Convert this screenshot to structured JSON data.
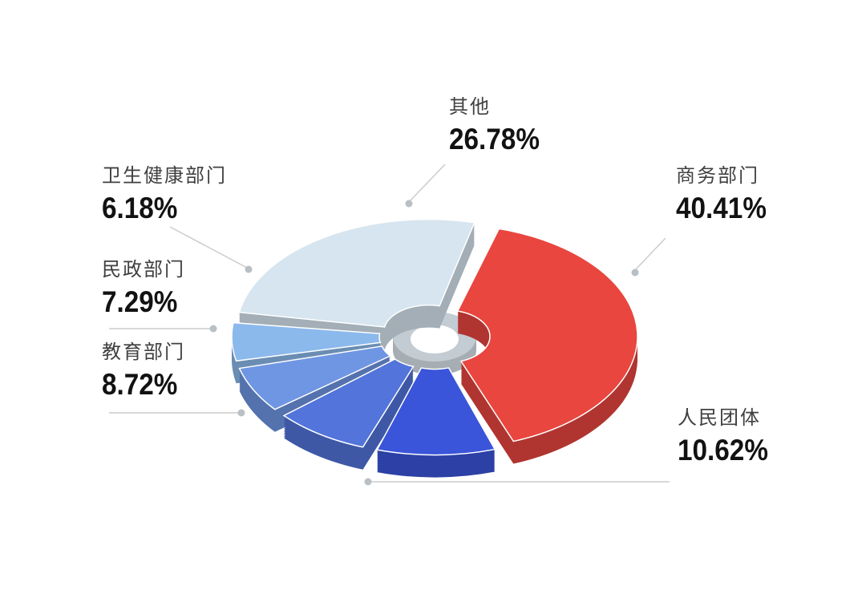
{
  "page": {
    "background": "#ffffff"
  },
  "chart_data": {
    "type": "pie",
    "variant": "3d-exploded-donut",
    "direction": "clockwise",
    "start_angle_deg": 15,
    "unit": "%",
    "title": "",
    "series": [
      {
        "name": "商务部门",
        "value": 40.41,
        "display": "40.41%",
        "color": "#e8463f"
      },
      {
        "name": "人民团体",
        "value": 10.62,
        "display": "10.62%",
        "color": "#3a55d9"
      },
      {
        "name": "教育部门",
        "value": 8.72,
        "display": "8.72%",
        "color": "#5274db"
      },
      {
        "name": "民政部门",
        "value": 7.29,
        "display": "7.29%",
        "color": "#6f96e3"
      },
      {
        "name": "卫生健康部门",
        "value": 6.18,
        "display": "6.18%",
        "color": "#8cb9ec"
      },
      {
        "name": "其他",
        "value": 26.78,
        "display": "26.78%",
        "color": "#d6e5ef"
      }
    ],
    "label_style": {
      "leader_line_color": "#cccccc",
      "dot_color": "#b9c0c5",
      "name_color": "#404040",
      "value_color": "#121212"
    },
    "legend_position": "callout-labels",
    "grid": false
  }
}
